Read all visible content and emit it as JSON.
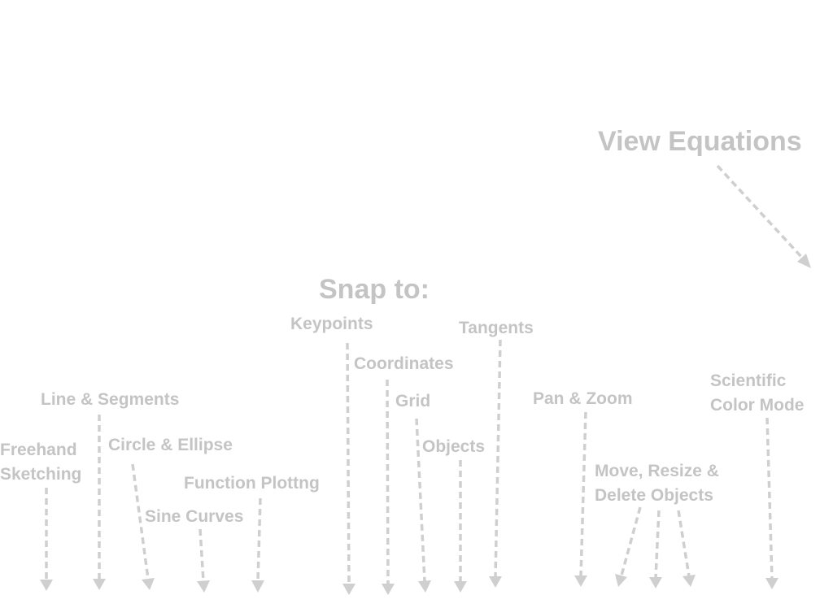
{
  "headings": {
    "view_equations": "View Equations",
    "snap_to": "Snap to:"
  },
  "tools": {
    "freehand": "Freehand\nSketching",
    "line_segments": "Line & Segments",
    "circle_ellipse": "Circle & Ellipse",
    "sine_curves": "Sine Curves",
    "function_plotting": "Function Plottng",
    "pan_zoom": "Pan & Zoom",
    "move_resize_delete": "Move, Resize &\nDelete Objects",
    "scientific_color": "Scientific\nColor Mode"
  },
  "snap": {
    "keypoints": "Keypoints",
    "coordinates": "Coordinates",
    "grid": "Grid",
    "objects": "Objects",
    "tangents": "Tangents"
  },
  "colors": {
    "label": "#c4c4c4",
    "arrow": "#cfcfcf",
    "background": "#ffffff"
  }
}
